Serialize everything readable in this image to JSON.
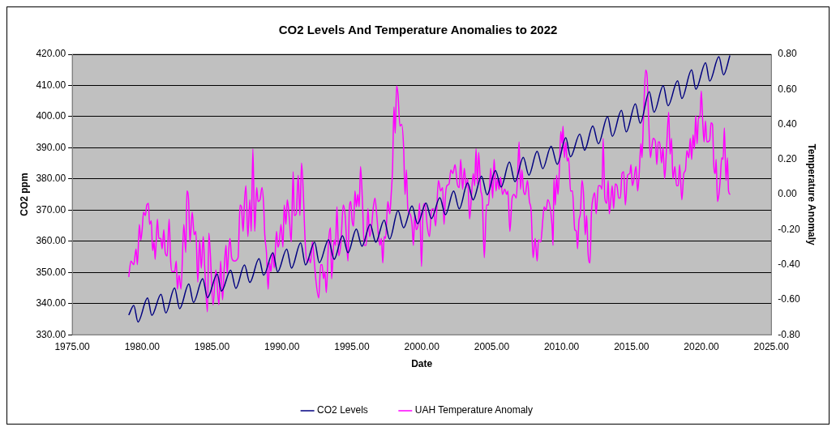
{
  "chart_data": {
    "type": "line",
    "title": "CO2 Levels And Temperature Anomalies to 2022",
    "xlabel": "Date",
    "ylabel": "CO2 ppm",
    "y2label": "Temperature Anomaly",
    "xlim": [
      1975,
      2025
    ],
    "xticks": [
      {
        "value": 1975,
        "label": "1975.00"
      },
      {
        "value": 1980,
        "label": "1980.00"
      },
      {
        "value": 1985,
        "label": "1985.00"
      },
      {
        "value": 1990,
        "label": "1990.00"
      },
      {
        "value": 1995,
        "label": "1995.00"
      },
      {
        "value": 2000,
        "label": "2000.00"
      },
      {
        "value": 2005,
        "label": "2005.00"
      },
      {
        "value": 2010,
        "label": "2010.00"
      },
      {
        "value": 2015,
        "label": "2015.00"
      },
      {
        "value": 2020,
        "label": "2020.00"
      },
      {
        "value": 2025,
        "label": "2025.00"
      }
    ],
    "ylim": [
      330,
      420
    ],
    "yticks": [
      {
        "value": 330,
        "label": "330.00"
      },
      {
        "value": 340,
        "label": "340.00"
      },
      {
        "value": 350,
        "label": "350.00"
      },
      {
        "value": 360,
        "label": "360.00"
      },
      {
        "value": 370,
        "label": "370.00"
      },
      {
        "value": 380,
        "label": "380.00"
      },
      {
        "value": 390,
        "label": "390.00"
      },
      {
        "value": 400,
        "label": "400.00"
      },
      {
        "value": 410,
        "label": "410.00"
      },
      {
        "value": 420,
        "label": "420.00"
      }
    ],
    "y2lim": [
      -0.8,
      0.8
    ],
    "y2ticks": [
      {
        "value": -0.8,
        "label": "-0.80"
      },
      {
        "value": -0.6,
        "label": "-0.60"
      },
      {
        "value": -0.4,
        "label": "-0.40"
      },
      {
        "value": -0.2,
        "label": "-0.20"
      },
      {
        "value": 0,
        "label": "0.00"
      },
      {
        "value": 0.2,
        "label": "0.20"
      },
      {
        "value": 0.4,
        "label": "0.40"
      },
      {
        "value": 0.6,
        "label": "0.60"
      },
      {
        "value": 0.8,
        "label": "0.80"
      }
    ],
    "grid": "y",
    "legend": "bottom",
    "line_style": "solid",
    "series": [
      {
        "name": "CO2 Levels",
        "color": "#000080",
        "x": [
          1979.04,
          1979.4,
          1979.7,
          1980.39,
          1980.69,
          1981.35,
          1981.69,
          1982.32,
          1982.68,
          1983.34,
          1983.67,
          1984.33,
          1984.67,
          1985.37,
          1985.67,
          1986.33,
          1986.7,
          1987.32,
          1987.7,
          1988.36,
          1988.69,
          1989.35,
          1989.69,
          1990.34,
          1990.68,
          1991.34,
          1991.68,
          1992.33,
          1992.67,
          1993.33,
          1993.73,
          1994.33,
          1994.72,
          1995.32,
          1995.72,
          1996.31,
          1996.71,
          1997.31,
          1997.7,
          1998.3,
          1998.7,
          1999.3,
          1999.7,
          2000.3,
          2000.69,
          2001.29,
          2001.69,
          2002.28,
          2002.68,
          2003.28,
          2003.67,
          2004.27,
          2004.67,
          2005.27,
          2005.67,
          2006.27,
          2006.66,
          2007.26,
          2007.66,
          2008.25,
          2008.65,
          2009.25,
          2009.69,
          2010.3,
          2010.64,
          2011.3,
          2011.64,
          2012.23,
          2012.63,
          2013.29,
          2013.63,
          2014.28,
          2014.62,
          2015.28,
          2015.62,
          2016.27,
          2016.61,
          2017.27,
          2017.61,
          2018.3,
          2018.6,
          2019.3,
          2019.6,
          2020.3,
          2020.59,
          2021.25,
          2021.58,
          2022.04
        ],
        "values": [
          336.3,
          339.4,
          334.1,
          341.8,
          336.2,
          343.0,
          337.0,
          345.0,
          338.4,
          346.3,
          340.4,
          348.0,
          341.9,
          349.5,
          344.0,
          350.7,
          344.9,
          352.4,
          346.8,
          354.4,
          349.1,
          356.3,
          350.2,
          357.5,
          351.4,
          359.5,
          352.4,
          359.7,
          353.1,
          360.5,
          354.2,
          361.8,
          356.3,
          363.9,
          358.4,
          365.4,
          359.7,
          366.8,
          360.7,
          369.8,
          364.3,
          371.3,
          365.6,
          372.2,
          367.3,
          374.0,
          368.5,
          376.1,
          370.4,
          378.7,
          373.3,
          380.9,
          374.9,
          382.7,
          377.4,
          385.4,
          379.1,
          386.9,
          381.2,
          388.9,
          383.3,
          390.5,
          384.7,
          393.2,
          387.1,
          394.4,
          389.2,
          397.0,
          391.3,
          400.0,
          393.7,
          402.0,
          395.1,
          404.1,
          397.9,
          408.0,
          401.4,
          409.9,
          403.5,
          411.5,
          405.8,
          415.0,
          408.8,
          417.3,
          411.4,
          419.2,
          413.4,
          419.6
        ]
      },
      {
        "name": "UAH Temperature Anomaly",
        "color": "#ff00ff",
        "axis": "y2",
        "x": [
          1979.04,
          1979.2,
          1979.4,
          1979.56,
          1979.66,
          1979.8,
          1979.9,
          1980.0,
          1980.1,
          1980.23,
          1980.33,
          1980.45,
          1980.53,
          1980.65,
          1980.75,
          1980.85,
          1980.93,
          1981.09,
          1981.19,
          1981.33,
          1981.43,
          1981.55,
          1981.65,
          1981.79,
          1981.93,
          1982.04,
          1982.14,
          1982.32,
          1982.44,
          1982.52,
          1982.64,
          1982.78,
          1982.98,
          1983.12,
          1983.2,
          1983.32,
          1983.42,
          1983.58,
          1983.72,
          1983.84,
          1983.98,
          1984.11,
          1984.23,
          1984.37,
          1984.47,
          1984.67,
          1984.77,
          1984.87,
          1985.07,
          1985.27,
          1985.49,
          1985.61,
          1985.75,
          1985.87,
          1986.0,
          1986.08,
          1986.18,
          1986.28,
          1986.4,
          1986.6,
          1986.86,
          1987.0,
          1987.1,
          1987.22,
          1987.32,
          1987.42,
          1987.56,
          1987.7,
          1987.8,
          1987.92,
          1988.05,
          1988.19,
          1988.29,
          1988.43,
          1988.57,
          1988.69,
          1988.77,
          1988.89,
          1989.01,
          1989.11,
          1989.21,
          1989.33,
          1989.45,
          1989.61,
          1989.71,
          1989.81,
          1989.93,
          1990.07,
          1990.16,
          1990.28,
          1990.38,
          1990.54,
          1990.66,
          1990.8,
          1990.88,
          1991.02,
          1991.16,
          1991.28,
          1991.4,
          1991.52,
          1991.66,
          1991.8,
          1991.92,
          1992.04,
          1992.18,
          1992.28,
          1992.44,
          1992.63,
          1992.77,
          1992.87,
          1992.97,
          1993.07,
          1993.17,
          1993.33,
          1993.47,
          1993.55,
          1993.73,
          1993.83,
          1993.93,
          1994.06,
          1994.22,
          1994.38,
          1994.52,
          1994.72,
          1994.82,
          1994.92,
          1995.02,
          1995.12,
          1995.22,
          1995.32,
          1995.42,
          1995.52,
          1995.62,
          1995.76,
          1995.88,
          1996.02,
          1996.15,
          1996.27,
          1996.41,
          1996.51,
          1996.65,
          1996.77,
          1996.91,
          1997.01,
          1997.11,
          1997.21,
          1997.31,
          1997.41,
          1997.57,
          1997.71,
          1997.81,
          1997.91,
          1998.01,
          1998.1,
          1998.2,
          1998.3,
          1998.44,
          1998.56,
          1998.7,
          1998.8,
          1998.9,
          1999.0,
          1999.16,
          1999.3,
          1999.4,
          1999.5,
          1999.6,
          1999.74,
          1999.84,
          1999.98,
          2000.09,
          2000.23,
          2000.39,
          2000.55,
          2000.69,
          2000.83,
          2000.99,
          2001.19,
          2001.35,
          2001.49,
          2001.59,
          2001.69,
          2001.79,
          2001.95,
          2002.08,
          2002.22,
          2002.38,
          2002.54,
          2002.68,
          2002.78,
          2002.92,
          2003.04,
          2003.18,
          2003.28,
          2003.42,
          2003.54,
          2003.68,
          2003.78,
          2003.88,
          2003.98,
          2004.07,
          2004.21,
          2004.33,
          2004.47,
          2004.63,
          2004.77,
          2004.93,
          2005.07,
          2005.17,
          2005.31,
          2005.41,
          2005.53,
          2005.63,
          2005.77,
          2005.93,
          2006.08,
          2006.16,
          2006.3,
          2006.46,
          2006.6,
          2006.76,
          2006.86,
          2006.96,
          2007.06,
          2007.16,
          2007.28,
          2007.4,
          2007.56,
          2007.7,
          2007.82,
          2007.96,
          2008.11,
          2008.25,
          2008.35,
          2008.51,
          2008.65,
          2008.75,
          2008.89,
          2009.01,
          2009.31,
          2009.39,
          2009.45,
          2009.55,
          2009.64,
          2009.74,
          2009.84,
          2009.94,
          2010.04,
          2010.1,
          2010.2,
          2010.3,
          2010.4,
          2010.5,
          2010.64,
          2010.78,
          2010.94,
          2011.06,
          2011.14,
          2011.24,
          2011.34,
          2011.46,
          2011.57,
          2011.69,
          2011.79,
          2011.89,
          2012.03,
          2012.13,
          2012.25,
          2012.37,
          2012.47,
          2012.63,
          2012.77,
          2012.89,
          2012.97,
          2013.09,
          2013.23,
          2013.33,
          2013.41,
          2013.53,
          2013.62,
          2013.72,
          2013.84,
          2013.96,
          2014.08,
          2014.2,
          2014.32,
          2014.44,
          2014.56,
          2014.72,
          2014.88,
          2014.96,
          2015.06,
          2015.18,
          2015.32,
          2015.44,
          2015.55,
          2015.67,
          2015.75,
          2015.85,
          2016.01,
          2016.11,
          2016.23,
          2016.35,
          2016.45,
          2016.55,
          2016.71,
          2016.81,
          2016.91,
          2017.01,
          2017.15,
          2017.25,
          2017.37,
          2017.51,
          2017.66,
          2017.76,
          2017.86,
          2017.96,
          2018.1,
          2018.22,
          2018.34,
          2018.44,
          2018.6,
          2018.74,
          2018.86,
          2018.96,
          2019.1,
          2019.2,
          2019.3,
          2019.4,
          2019.5,
          2019.59,
          2019.69,
          2019.79,
          2019.89,
          2019.99,
          2020.09,
          2020.19,
          2020.29,
          2020.39,
          2020.59,
          2020.69,
          2020.79,
          2020.89,
          2020.99,
          2021.05,
          2021.15,
          2021.25,
          2021.35,
          2021.45,
          2021.55,
          2021.64,
          2021.76,
          2021.86,
          2021.94,
          2022.06
        ],
        "values": [
          -0.47,
          -0.38,
          -0.4,
          -0.31,
          -0.4,
          -0.17,
          -0.26,
          -0.2,
          -0.1,
          -0.12,
          -0.06,
          -0.05,
          -0.17,
          -0.15,
          -0.32,
          -0.27,
          -0.37,
          -0.14,
          -0.25,
          -0.25,
          -0.31,
          -0.2,
          -0.33,
          -0.35,
          -0.14,
          -0.38,
          -0.44,
          -0.44,
          -0.38,
          -0.54,
          -0.46,
          -0.54,
          -0.17,
          -0.33,
          0.02,
          -0.03,
          -0.27,
          -0.1,
          -0.23,
          -0.21,
          -0.5,
          -0.26,
          -0.42,
          -0.24,
          -0.41,
          -0.67,
          -0.22,
          -0.33,
          -0.63,
          -0.43,
          -0.63,
          -0.38,
          -0.6,
          -0.42,
          -0.29,
          -0.45,
          -0.33,
          -0.25,
          -0.36,
          -0.38,
          -0.36,
          -0.06,
          -0.07,
          -0.21,
          -0.04,
          0.05,
          -0.24,
          -0.03,
          -0.21,
          0.26,
          -0.21,
          0.04,
          -0.04,
          -0.03,
          0.04,
          -0.06,
          -0.23,
          -0.33,
          -0.54,
          -0.39,
          -0.44,
          -0.33,
          -0.42,
          -0.21,
          -0.3,
          -0.27,
          -0.17,
          -0.3,
          -0.06,
          -0.17,
          -0.03,
          -0.15,
          -0.27,
          0.13,
          -0.12,
          -0.11,
          0.11,
          -0.12,
          0.18,
          0.02,
          -0.27,
          -0.39,
          -0.36,
          -0.39,
          -0.27,
          -0.35,
          -0.5,
          -0.59,
          -0.4,
          -0.4,
          -0.48,
          -0.44,
          -0.56,
          -0.27,
          -0.19,
          -0.48,
          -0.26,
          -0.29,
          -0.07,
          -0.35,
          -0.27,
          -0.06,
          -0.12,
          -0.38,
          -0.08,
          -0.04,
          -0.15,
          -0.18,
          0.02,
          -0.07,
          0.0,
          -0.07,
          0.16,
          -0.05,
          -0.29,
          -0.29,
          -0.08,
          -0.24,
          -0.18,
          -0.09,
          -0.02,
          -0.11,
          -0.24,
          -0.29,
          -0.25,
          -0.39,
          -0.24,
          -0.25,
          -0.04,
          -0.11,
          0.0,
          0.15,
          0.5,
          0.35,
          0.62,
          0.57,
          0.39,
          0.4,
          0.27,
          0.0,
          0.14,
          -0.08,
          -0.11,
          -0.17,
          -0.29,
          -0.11,
          -0.2,
          -0.17,
          -0.05,
          -0.41,
          -0.09,
          -0.05,
          -0.18,
          -0.24,
          -0.09,
          -0.08,
          -0.18,
          0.08,
          0.02,
          0.04,
          -0.17,
          -0.01,
          0.05,
          0.06,
          0.14,
          0.12,
          0.17,
          0.06,
          0.04,
          0.2,
          0.03,
          0.15,
          0.04,
          0.09,
          -0.14,
          -0.02,
          0.12,
          0.05,
          0.26,
          0.06,
          0.24,
          0.03,
          -0.03,
          -0.36,
          -0.06,
          -0.06,
          0.15,
          -0.02,
          0.2,
          0.02,
          0.09,
          0.03,
          0.1,
          0.0,
          0.03,
          0.0,
          0.02,
          -0.21,
          -0.02,
          0.0,
          -0.02,
          0.13,
          0.3,
          0.03,
          0.14,
          0.02,
          0.0,
          0.08,
          -0.04,
          -0.09,
          -0.36,
          -0.25,
          -0.38,
          -0.26,
          -0.27,
          -0.15,
          -0.07,
          -0.09,
          -0.03,
          -0.17,
          -0.29,
          0.09,
          -0.06,
          0.11,
          0.0,
          0.14,
          0.36,
          0.29,
          0.39,
          0.21,
          0.3,
          0.19,
          0.21,
          0.02,
          0.02,
          -0.2,
          -0.21,
          -0.31,
          -0.15,
          -0.11,
          0.08,
          0.0,
          -0.23,
          -0.12,
          -0.33,
          -0.39,
          -0.11,
          -0.02,
          0.01,
          -0.11,
          0.05,
          0.05,
          0.03,
          0.32,
          -0.02,
          -0.05,
          0.08,
          -0.11,
          -0.02,
          0.05,
          -0.08,
          0.06,
          0.05,
          -0.02,
          -0.02,
          0.12,
          0.13,
          -0.06,
          0.11,
          0.12,
          0.17,
          0.05,
          0.09,
          0.16,
          0.02,
          0.12,
          0.29,
          0.21,
          0.42,
          0.71,
          0.68,
          0.42,
          0.21,
          0.27,
          0.32,
          0.3,
          0.17,
          0.3,
          0.3,
          0.18,
          0.27,
          0.09,
          0.27,
          0.47,
          0.23,
          0.32,
          0.09,
          0.16,
          0.05,
          0.05,
          0.17,
          -0.03,
          0.12,
          0.14,
          0.25,
          0.21,
          0.32,
          0.2,
          0.34,
          0.26,
          0.45,
          0.29,
          0.44,
          0.44,
          0.59,
          0.42,
          0.3,
          0.42,
          0.3,
          0.31,
          0.41,
          0.4,
          0.16,
          0.12,
          0.2,
          -0.04,
          0.0,
          0.09,
          0.21,
          0.2,
          0.38,
          0.08,
          0.21,
          0.02,
          0.0
        ]
      }
    ]
  }
}
